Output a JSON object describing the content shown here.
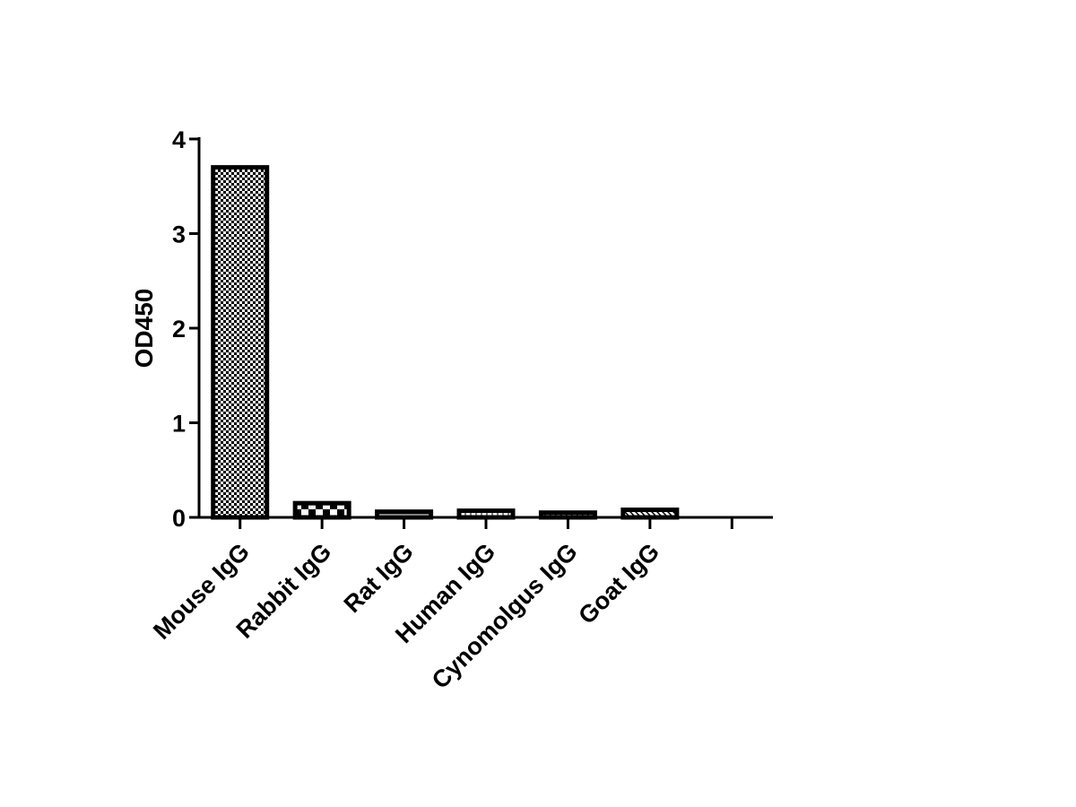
{
  "chart_data": {
    "type": "bar",
    "y_label": "OD450",
    "categories": [
      "Mouse IgG",
      "Rabbit IgG",
      "Rat IgG",
      "Human IgG",
      "Cynomolgus IgG",
      "Goat IgG",
      null
    ],
    "values": [
      3.7,
      0.15,
      0.06,
      0.07,
      0.05,
      0.08,
      null
    ],
    "color": "#000000",
    "ylim": [
      0,
      4
    ],
    "yticks": [
      0,
      1,
      2,
      3,
      4
    ],
    "grid": false
  }
}
